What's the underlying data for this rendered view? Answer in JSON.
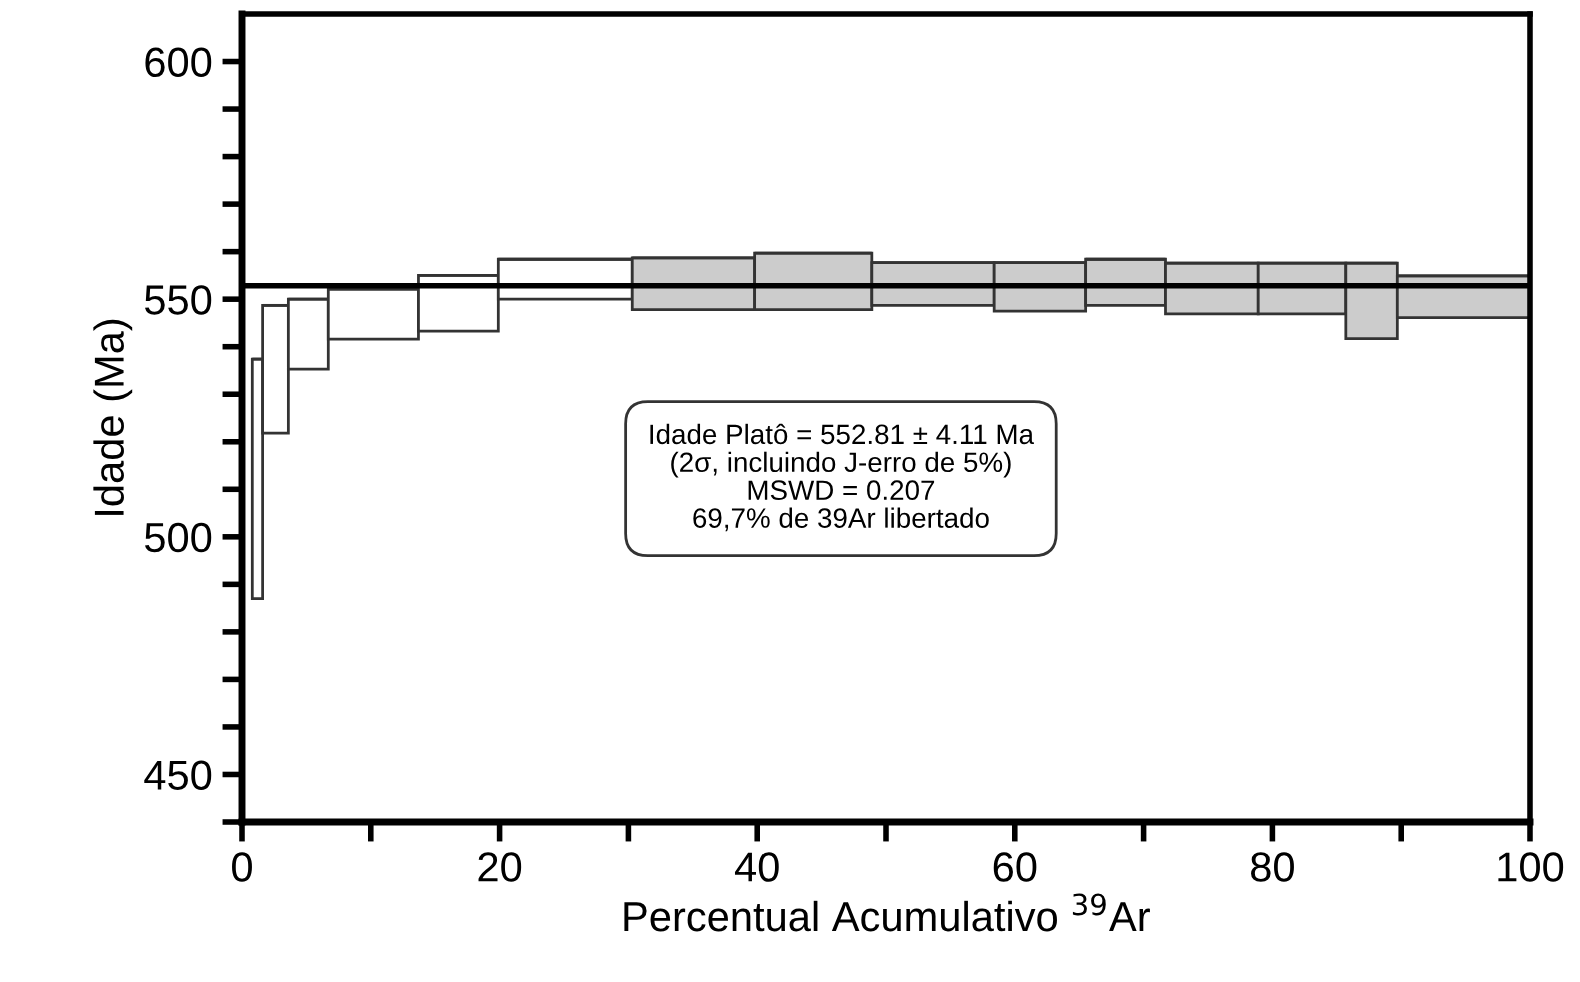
{
  "chart_data": {
    "type": "bar",
    "xlabel": "Percentual Acumulativo $^{39}$Ar",
    "ylabel": "Idade (Ma)",
    "x": [
      1.2,
      2.6,
      5.15,
      10.2,
      16.8,
      25.1,
      35.05,
      44.35,
      53.65,
      61.95,
      68.6,
      75.3,
      82.3,
      87.7,
      94.85
    ],
    "xerrors": [
      0.4,
      1.0,
      1.55,
      3.5,
      3.1,
      5.2,
      4.75,
      4.55,
      4.75,
      3.55,
      3.1,
      3.6,
      3.4,
      2.0,
      5.15
    ],
    "base": [
      487.0,
      521.8,
      535.3,
      541.6,
      543.3,
      550.0,
      547.8,
      547.8,
      548.7,
      547.5,
      548.7,
      546.9,
      546.9,
      541.7,
      546.1
    ],
    "values": [
      50.4,
      26.9,
      14.7,
      10.5,
      11.7,
      8.4,
      10.9,
      11.9,
      9.0,
      10.2,
      9.7,
      10.7,
      10.7,
      15.9,
      8.8
    ],
    "colors": [
      "#ffffff",
      "#ffffff",
      "#ffffff",
      "#ffffff",
      "#ffffff",
      "#ffffff",
      "#cccccc",
      "#cccccc",
      "#cccccc",
      "#cccccc",
      "#cccccc",
      "#cccccc",
      "#cccccc",
      "#cccccc",
      "#cccccc"
    ],
    "xlim": [
      0,
      100
    ],
    "xticks": [
      0,
      {
        "value": 10,
        "label": null
      },
      20,
      {
        "value": 30,
        "label": null
      },
      40,
      {
        "value": 50,
        "label": null
      },
      60,
      {
        "value": 70,
        "label": null
      },
      80,
      {
        "value": 90,
        "label": null
      },
      100
    ],
    "ylim": [
      440,
      610
    ],
    "yticks": [
      {
        "value": 440,
        "label": null
      },
      450,
      {
        "value": 460,
        "label": null
      },
      {
        "value": 470,
        "label": null
      },
      {
        "value": 480,
        "label": null
      },
      {
        "value": 490,
        "label": null
      },
      500,
      {
        "value": 510,
        "label": null
      },
      {
        "value": 520,
        "label": null
      },
      {
        "value": 530,
        "label": null
      },
      {
        "value": 540,
        "label": null
      },
      550,
      {
        "value": 560,
        "label": null
      },
      {
        "value": 570,
        "label": null
      },
      {
        "value": 580,
        "label": null
      },
      {
        "value": 590,
        "label": null
      },
      600
    ],
    "ref_lines": [
      {
        "axis": "y",
        "value": 552.81,
        "color": "#000000"
      }
    ],
    "annotations": [
      "Idade Platô = 552.81 ± 4.11 Ma\n(2σ, incluindo J-erro de 5%)\nMSWD = 0.207\n69,7% de 39Ar libertado"
    ],
    "grid": false,
    "legend": false
  }
}
